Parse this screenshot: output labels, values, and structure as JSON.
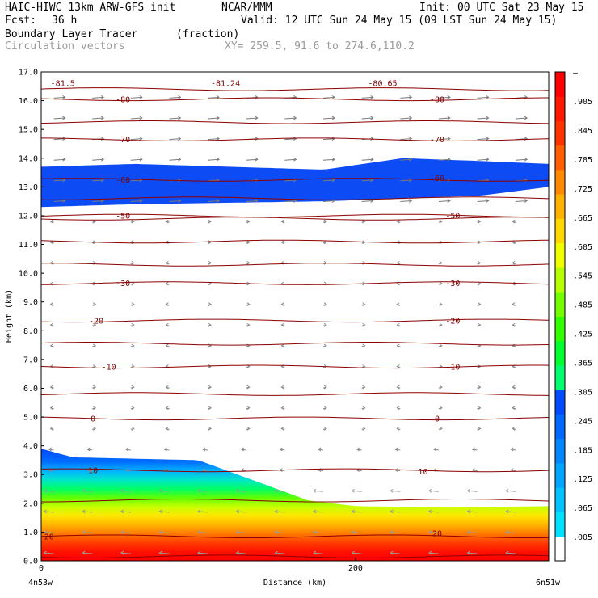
{
  "header": {
    "model": "HAIC-HIWC 13km ARW-GFS init",
    "org": "NCAR/MMM",
    "init": "Init: 00 UTC Sat 23 May 15",
    "fcst_label": "Fcst:",
    "fcst_value": "36 h",
    "valid": "Valid: 12 UTC Sun 24 May 15 (09 LST Sun 24 May 15)",
    "field": "Boundary Layer Tracer",
    "units": "(fraction)",
    "vectors": "Circulation vectors",
    "xy": "XY= 259.5, 91.6 to 274.6,110.2"
  },
  "chart_data": {
    "type": "heatmap",
    "title": "Boundary Layer Tracer",
    "units": "(fraction)",
    "xlabel": "Distance (km)",
    "ylabel": "Height (km)",
    "xlim": [
      0,
      323
    ],
    "ylim": [
      0,
      17
    ],
    "x_ticks": [
      {
        "value": 0,
        "label": "0"
      },
      {
        "value": 200,
        "label": "200"
      }
    ],
    "x_end_labels": [
      "4n53w",
      "6n51w"
    ],
    "y_ticks": [
      "0.0",
      "1.0",
      "2.0",
      "3.0",
      "4.0",
      "5.0",
      "6.0",
      "7.0",
      "8.0",
      "9.0",
      "10.0",
      "11.0",
      "12.0",
      "13.0",
      "14.0",
      "15.0",
      "16.0",
      "17.0"
    ],
    "colorbar": {
      "labels": [
        ".005",
        ".065",
        ".125",
        ".185",
        ".245",
        ".305",
        ".365",
        ".425",
        ".485",
        ".545",
        ".605",
        ".665",
        ".725",
        ".785",
        ".845",
        ".905"
      ],
      "top_label": "–",
      "colors": [
        "#ffffff",
        "#00e1ff",
        "#00c3ff",
        "#00a5ff",
        "#0087ff",
        "#0068ff",
        "#004bff",
        "#00ff6e",
        "#00ff30",
        "#33ff00",
        "#73ff00",
        "#b5ff00",
        "#f0ff00",
        "#ffd800",
        "#ffb300",
        "#ff8a00",
        "#ff5f00",
        "#ff3300",
        "#ff1800",
        "#ff0000"
      ]
    },
    "tracer_upper_layer": {
      "x_km": [
        0,
        60,
        120,
        180,
        230,
        280,
        323
      ],
      "bottom_km": [
        12.3,
        12.4,
        12.45,
        12.5,
        12.6,
        12.7,
        13.0
      ],
      "top_km": [
        13.7,
        13.8,
        13.7,
        13.6,
        14.0,
        13.9,
        13.8
      ]
    },
    "tracer_boundary_layer": {
      "x_km": [
        0,
        20,
        60,
        100,
        140,
        170,
        200,
        260,
        323
      ],
      "top_km": [
        3.9,
        3.6,
        3.55,
        3.5,
        2.7,
        2.1,
        1.9,
        1.85,
        1.9
      ]
    },
    "temperature_contours_c": [
      {
        "value": 20,
        "label": "20",
        "label_x_km": 5,
        "height_km": 0.85
      },
      {
        "value": 20,
        "label": "20",
        "label_x_km": 252,
        "height_km": 0.95
      },
      {
        "value": 10,
        "label": "10",
        "label_x_km": 33,
        "height_km": 3.15
      },
      {
        "value": 10,
        "label": "10",
        "label_x_km": 243,
        "height_km": 3.1
      },
      {
        "value": 0,
        "label": "0",
        "label_x_km": 33,
        "height_km": 4.95
      },
      {
        "value": 0,
        "label": "0",
        "label_x_km": 252,
        "height_km": 4.95
      },
      {
        "value": -10,
        "label": "-10",
        "label_x_km": 43,
        "height_km": 6.75
      },
      {
        "value": -10,
        "label": "-10",
        "label_x_km": 262,
        "height_km": 6.75
      },
      {
        "value": -20,
        "label": "-20",
        "label_x_km": 35,
        "height_km": 8.35
      },
      {
        "value": -20,
        "label": "-20",
        "label_x_km": 262,
        "height_km": 8.35
      },
      {
        "value": -30,
        "label": "-30",
        "label_x_km": 52,
        "height_km": 9.65
      },
      {
        "value": -30,
        "label": "-30",
        "label_x_km": 262,
        "height_km": 9.65
      },
      {
        "value": -50,
        "label": "-50",
        "label_x_km": 52,
        "height_km": 12.0
      },
      {
        "value": -50,
        "label": "-50",
        "label_x_km": 262,
        "height_km": 12.0
      },
      {
        "value": -60,
        "label": "-60",
        "label_x_km": 52,
        "height_km": 13.25
      },
      {
        "value": -60,
        "label": "-60",
        "label_x_km": 252,
        "height_km": 13.3
      },
      {
        "value": -70,
        "label": "-70",
        "label_x_km": 52,
        "height_km": 14.65
      },
      {
        "value": -70,
        "label": "-70",
        "label_x_km": 252,
        "height_km": 14.65
      },
      {
        "value": -80,
        "label": "-80",
        "label_x_km": 52,
        "height_km": 16.05
      },
      {
        "value": -80,
        "label": "-80",
        "label_x_km": 252,
        "height_km": 16.05
      }
    ],
    "minimum_labels": [
      {
        "label": "-81.5",
        "x_km": 6,
        "height_km": 16.6
      },
      {
        "label": "-81.24",
        "x_km": 108,
        "height_km": 16.6
      },
      {
        "label": "-80.65",
        "x_km": 208,
        "height_km": 16.6
      }
    ],
    "unlabeled_contour_heights_km": [
      0.15,
      2.1,
      5.8,
      7.55,
      10.3,
      11.1,
      11.9,
      12.6,
      15.25,
      16.4
    ],
    "vectors_note": "Circulation vectors: mostly rightward (eastward) aloft above ~12 km, weak mixed in mid-levels, leftward (westward) below ~2.5 km"
  }
}
